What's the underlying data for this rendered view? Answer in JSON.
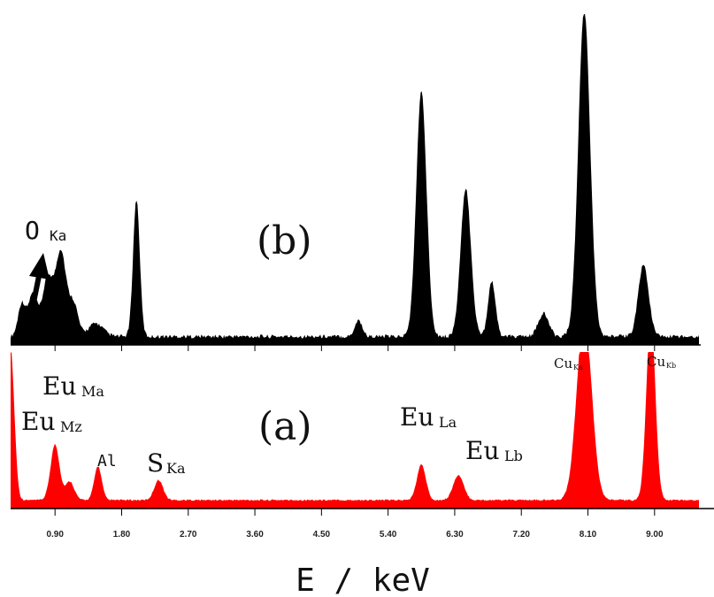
{
  "chart_data": [
    {
      "type": "area",
      "panel_label": "(b)",
      "color": "#000000",
      "xlim": [
        0.3,
        9.6
      ],
      "peaks": [
        {
          "x": 0.45,
          "h": 0.1,
          "w": 0.05
        },
        {
          "x": 0.6,
          "h": 0.13,
          "w": 0.06
        },
        {
          "x": 0.8,
          "h": 0.18,
          "w": 0.07
        },
        {
          "x": 0.98,
          "h": 0.26,
          "w": 0.07
        },
        {
          "x": 1.15,
          "h": 0.1,
          "w": 0.06
        },
        {
          "x": 1.45,
          "h": 0.04,
          "w": 0.1
        },
        {
          "x": 2.0,
          "h": 0.42,
          "w": 0.045
        },
        {
          "x": 5.0,
          "h": 0.05,
          "w": 0.05
        },
        {
          "x": 5.85,
          "h": 0.75,
          "w": 0.07
        },
        {
          "x": 6.45,
          "h": 0.45,
          "w": 0.07
        },
        {
          "x": 6.8,
          "h": 0.17,
          "w": 0.05
        },
        {
          "x": 7.5,
          "h": 0.07,
          "w": 0.07
        },
        {
          "x": 8.05,
          "h": 1.0,
          "w": 0.08
        },
        {
          "x": 8.85,
          "h": 0.22,
          "w": 0.07
        }
      ],
      "baseline": 0.02,
      "annotations": [
        {
          "text": "O",
          "sub": "Ka",
          "x": 0.45
        }
      ]
    },
    {
      "type": "area",
      "panel_label": "(a)",
      "color": "#ff0000",
      "xlim": [
        0.3,
        9.6
      ],
      "xlabel": "E / keV",
      "xticks": [
        "0.90",
        "1.80",
        "2.70",
        "3.60",
        "4.50",
        "5.40",
        "6.30",
        "7.20",
        "8.10",
        "9.00"
      ],
      "xtick_values": [
        0.9,
        1.8,
        2.7,
        3.6,
        4.5,
        5.4,
        6.3,
        7.2,
        8.1,
        9.0
      ],
      "peaks": [
        {
          "x": 0.3,
          "h": 0.98,
          "w": 0.05
        },
        {
          "x": 0.9,
          "h": 0.36,
          "w": 0.06
        },
        {
          "x": 1.1,
          "h": 0.12,
          "w": 0.06
        },
        {
          "x": 1.48,
          "h": 0.22,
          "w": 0.05
        },
        {
          "x": 2.3,
          "h": 0.13,
          "w": 0.06
        },
        {
          "x": 5.85,
          "h": 0.23,
          "w": 0.06
        },
        {
          "x": 6.35,
          "h": 0.16,
          "w": 0.07
        },
        {
          "x": 8.05,
          "h": 1.2,
          "w": 0.1
        },
        {
          "x": 8.95,
          "h": 1.2,
          "w": 0.06
        }
      ],
      "baseline": 0.05,
      "annotations": [
        {
          "text": "Eu",
          "sub": "Ma",
          "x": 0.9
        },
        {
          "text": "Eu",
          "sub": "Mz",
          "x": 0.45
        },
        {
          "text": "Al",
          "sub": "",
          "x": 1.48
        },
        {
          "text": "S",
          "sub": "Ka",
          "x": 2.3
        },
        {
          "text": "Eu",
          "sub": "La",
          "x": 5.85
        },
        {
          "text": "Eu",
          "sub": "Lb",
          "x": 6.35
        },
        {
          "text": "Cu",
          "sub": "Ka",
          "x": 8.05
        },
        {
          "text": "Cu",
          "sub": "Kb",
          "x": 8.95
        }
      ]
    }
  ]
}
